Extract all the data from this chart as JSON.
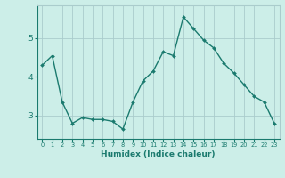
{
  "x": [
    0,
    1,
    2,
    3,
    4,
    5,
    6,
    7,
    8,
    9,
    10,
    11,
    12,
    13,
    14,
    15,
    16,
    17,
    18,
    19,
    20,
    21,
    22,
    23
  ],
  "y": [
    4.3,
    4.55,
    3.35,
    2.8,
    2.95,
    2.9,
    2.9,
    2.85,
    2.65,
    3.35,
    3.9,
    4.15,
    4.65,
    4.55,
    5.55,
    5.25,
    4.95,
    4.75,
    4.35,
    4.1,
    3.8,
    3.5,
    3.35,
    2.8
  ],
  "line_color": "#1a7a6e",
  "marker": "D",
  "marker_size": 2.0,
  "bg_color": "#cceee8",
  "grid_color": "#aacccc",
  "xlabel": "Humidex (Indice chaleur)",
  "yticks": [
    3,
    4,
    5
  ],
  "xlim": [
    -0.5,
    23.5
  ],
  "ylim": [
    2.4,
    5.85
  ],
  "tick_color": "#1a7a6e",
  "line_width": 1.0,
  "xlabel_fontsize": 6.5,
  "xtick_fontsize": 4.8,
  "ytick_fontsize": 6.5
}
